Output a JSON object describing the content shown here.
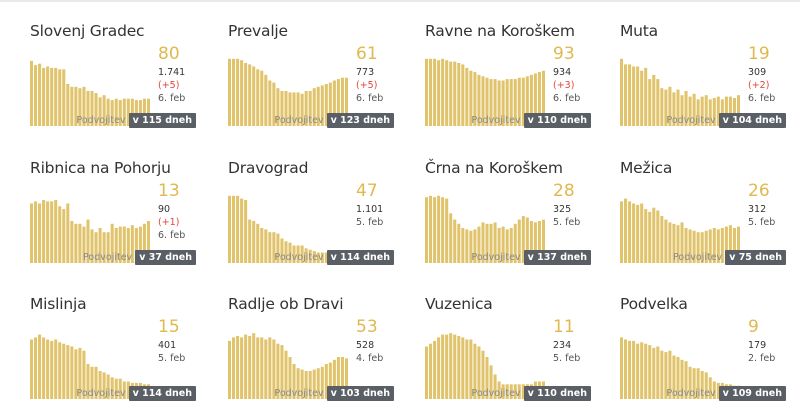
{
  "colors": {
    "bar": "#e0c36a",
    "value": "#e0b94e",
    "delta": "#e1453d",
    "badge_bg": "#5a5f66"
  },
  "cards": [
    {
      "name": "Slovenj Gradec",
      "current": "80",
      "total": "1.741",
      "delta": "(+5)",
      "date": "6. feb",
      "label": "Podvojitev",
      "badge": "v 115 dneh",
      "series": [
        0.93,
        0.87,
        0.89,
        0.83,
        0.85,
        0.83,
        0.83,
        0.81,
        0.81,
        0.6,
        0.56,
        0.56,
        0.54,
        0.56,
        0.5,
        0.5,
        0.47,
        0.41,
        0.44,
        0.39,
        0.37,
        0.39,
        0.37,
        0.39,
        0.39,
        0.39,
        0.37,
        0.37,
        0.39,
        0.39
      ]
    },
    {
      "name": "Prevalje",
      "current": "61",
      "total": "773",
      "delta": "(+5)",
      "date": "6. feb",
      "label": "Podvojitev",
      "badge": "v 123 dneh",
      "series": [
        0.96,
        0.96,
        0.96,
        0.94,
        0.9,
        0.88,
        0.85,
        0.81,
        0.79,
        0.73,
        0.65,
        0.62,
        0.54,
        0.5,
        0.5,
        0.48,
        0.48,
        0.48,
        0.46,
        0.5,
        0.5,
        0.54,
        0.56,
        0.58,
        0.6,
        0.62,
        0.65,
        0.67,
        0.69,
        0.69
      ]
    },
    {
      "name": "Ravne na Koroškem",
      "current": "93",
      "total": "934",
      "delta": "(+3)",
      "date": "6. feb",
      "label": "Podvojitev",
      "badge": "v 110 dneh",
      "series": [
        0.96,
        0.96,
        0.96,
        0.94,
        0.96,
        0.94,
        0.92,
        0.92,
        0.9,
        0.88,
        0.83,
        0.79,
        0.77,
        0.73,
        0.71,
        0.69,
        0.67,
        0.67,
        0.65,
        0.65,
        0.67,
        0.67,
        0.67,
        0.69,
        0.69,
        0.71,
        0.73,
        0.75,
        0.77,
        0.79
      ]
    },
    {
      "name": "Muta",
      "current": "19",
      "total": "309",
      "delta": "(+2)",
      "date": "6. feb",
      "label": "Podvojitev",
      "badge": "v 104 dneh",
      "series": [
        0.96,
        0.88,
        0.88,
        0.85,
        0.85,
        0.79,
        0.83,
        0.67,
        0.73,
        0.67,
        0.54,
        0.52,
        0.56,
        0.48,
        0.52,
        0.44,
        0.5,
        0.42,
        0.46,
        0.38,
        0.42,
        0.44,
        0.38,
        0.4,
        0.42,
        0.38,
        0.42,
        0.42,
        0.4,
        0.44
      ]
    },
    {
      "name": "Ribnica na Pohorju",
      "current": "13",
      "total": "90",
      "delta": "(+1)",
      "date": "6. feb",
      "label": "Podvojitev",
      "badge": "v 37 dneh",
      "series": [
        0.85,
        0.88,
        0.85,
        0.9,
        0.88,
        0.88,
        0.9,
        0.81,
        0.77,
        0.85,
        0.6,
        0.56,
        0.56,
        0.52,
        0.62,
        0.48,
        0.44,
        0.5,
        0.44,
        0.44,
        0.56,
        0.5,
        0.52,
        0.52,
        0.5,
        0.54,
        0.5,
        0.52,
        0.56,
        0.6
      ]
    },
    {
      "name": "Dravograd",
      "current": "47",
      "total": "1.101",
      "delta": "",
      "date": "5. feb",
      "label": "Podvojitev",
      "badge": "v 114 dneh",
      "series": [
        0.96,
        0.96,
        0.96,
        0.92,
        0.9,
        0.62,
        0.6,
        0.56,
        0.5,
        0.48,
        0.44,
        0.44,
        0.42,
        0.35,
        0.31,
        0.29,
        0.25,
        0.25,
        0.25,
        0.21,
        0.19,
        0.17,
        0.15,
        0.15,
        0.15,
        0.15,
        0.15,
        0.15,
        0.15,
        0.15
      ]
    },
    {
      "name": "Črna na Koroškem",
      "current": "28",
      "total": "325",
      "delta": "",
      "date": "5. feb",
      "label": "Podvojitev",
      "badge": "v 137 dneh",
      "series": [
        0.94,
        0.96,
        0.94,
        0.96,
        0.94,
        0.92,
        0.71,
        0.62,
        0.56,
        0.5,
        0.48,
        0.46,
        0.48,
        0.52,
        0.58,
        0.56,
        0.56,
        0.58,
        0.5,
        0.52,
        0.48,
        0.5,
        0.56,
        0.62,
        0.67,
        0.65,
        0.6,
        0.58,
        0.6,
        0.62
      ]
    },
    {
      "name": "Mežica",
      "current": "26",
      "total": "312",
      "delta": "",
      "date": "5. feb",
      "label": "Podvojitev",
      "badge": "v 75 dneh",
      "series": [
        0.88,
        0.92,
        0.88,
        0.85,
        0.83,
        0.85,
        0.77,
        0.73,
        0.79,
        0.75,
        0.67,
        0.62,
        0.58,
        0.56,
        0.54,
        0.58,
        0.5,
        0.48,
        0.46,
        0.44,
        0.44,
        0.46,
        0.48,
        0.5,
        0.48,
        0.5,
        0.52,
        0.54,
        0.5,
        0.52
      ]
    },
    {
      "name": "Mislinja",
      "current": "15",
      "total": "401",
      "delta": "",
      "date": "5. feb",
      "label": "Podvojitev",
      "badge": "v 114 dneh",
      "series": [
        0.85,
        0.88,
        0.92,
        0.88,
        0.85,
        0.83,
        0.85,
        0.81,
        0.79,
        0.77,
        0.75,
        0.71,
        0.73,
        0.69,
        0.5,
        0.46,
        0.46,
        0.4,
        0.38,
        0.35,
        0.31,
        0.29,
        0.29,
        0.25,
        0.25,
        0.23,
        0.23,
        0.23,
        0.21,
        0.21
      ]
    },
    {
      "name": "Radlje ob Dravi",
      "current": "53",
      "total": "528",
      "delta": "",
      "date": "4. feb",
      "label": "Podvojitev",
      "badge": "v 103 dneh",
      "series": [
        0.83,
        0.88,
        0.9,
        0.88,
        0.92,
        0.9,
        0.94,
        0.88,
        0.88,
        0.85,
        0.88,
        0.85,
        0.79,
        0.77,
        0.69,
        0.6,
        0.5,
        0.44,
        0.42,
        0.4,
        0.4,
        0.42,
        0.44,
        0.46,
        0.5,
        0.52,
        0.56,
        0.6,
        0.6,
        0.58
      ]
    },
    {
      "name": "Vuzenica",
      "current": "11",
      "total": "234",
      "delta": "",
      "date": "5. feb",
      "label": "Podvojitev",
      "badge": "v 110 dneh",
      "series": [
        0.75,
        0.79,
        0.83,
        0.88,
        0.92,
        0.92,
        0.94,
        0.92,
        0.9,
        0.88,
        0.85,
        0.85,
        0.79,
        0.75,
        0.69,
        0.6,
        0.48,
        0.35,
        0.25,
        0.21,
        0.21,
        0.21,
        0.21,
        0.21,
        0.21,
        0.21,
        0.21,
        0.25,
        0.25,
        0.25
      ]
    },
    {
      "name": "Podvelka",
      "current": "9",
      "total": "179",
      "delta": "",
      "date": "2. feb",
      "label": "Podvojitev",
      "badge": "v 109 dneh",
      "series": [
        0.88,
        0.85,
        0.83,
        0.83,
        0.79,
        0.81,
        0.79,
        0.77,
        0.73,
        0.75,
        0.69,
        0.67,
        0.69,
        0.62,
        0.6,
        0.56,
        0.54,
        0.46,
        0.44,
        0.44,
        0.4,
        0.38,
        0.31,
        0.25,
        0.23,
        0.23,
        0.21,
        0.21,
        0.19,
        0.19
      ]
    }
  ],
  "chart_data": {
    "type": "bar",
    "note_series": "Each card: small multiples of daily values; heights are relative (0–1) of each card's own maximum.",
    "series": []
  }
}
